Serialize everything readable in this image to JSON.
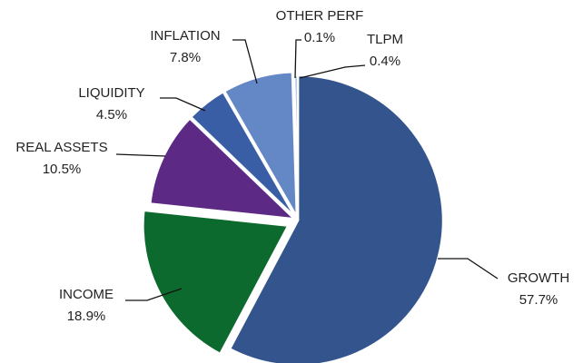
{
  "chart_data": {
    "type": "pie",
    "categories": [
      "GROWTH",
      "INCOME",
      "REAL ASSETS",
      "LIQUIDITY",
      "INFLATION",
      "OTHER PERF",
      "TLPM"
    ],
    "values": [
      57.7,
      18.9,
      10.5,
      4.5,
      7.8,
      0.1,
      0.4
    ],
    "value_labels": [
      "57.7%",
      "18.9%",
      "10.5%",
      "4.5%",
      "7.8%",
      "0.1%",
      "0.4%"
    ],
    "colors": [
      "#34548e",
      "#0d6a2e",
      "#5c2a85",
      "#3a5ea6",
      "#6487c6",
      "#f0dd9a",
      "#9cc3e5"
    ]
  }
}
